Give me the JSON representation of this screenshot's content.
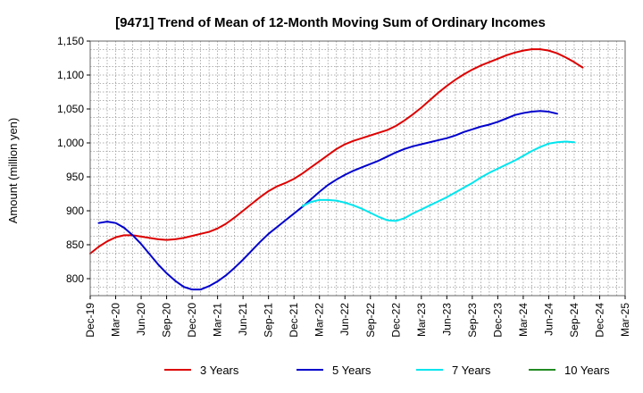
{
  "chart_data": {
    "type": "line",
    "title": "[9471]  Trend of Mean of 12-Month Moving Sum of Ordinary Incomes",
    "ylabel": "Amount (million yen)",
    "xlabel": "",
    "ylim": [
      775,
      1150
    ],
    "y_ticks": [
      800,
      850,
      900,
      950,
      1000,
      1050,
      1100,
      1150
    ],
    "y_tick_labels": [
      "800",
      "850",
      "900",
      "950",
      "1,000",
      "1,050",
      "1,100",
      "1,150"
    ],
    "x_tick_labels": [
      "Dec-19",
      "Mar-20",
      "Jun-20",
      "Sep-20",
      "Dec-20",
      "Mar-21",
      "Jun-21",
      "Sep-21",
      "Dec-21",
      "Mar-22",
      "Jun-22",
      "Sep-22",
      "Dec-22",
      "Mar-23",
      "Jun-23",
      "Sep-23",
      "Dec-23",
      "Mar-24",
      "Jun-24",
      "Sep-24",
      "Dec-24",
      "Mar-25"
    ],
    "grid": true,
    "legend_position": "bottom",
    "series": [
      {
        "name": "3 Years",
        "color": "#dd0000",
        "start_index": 0,
        "values": [
          837,
          847,
          855,
          861,
          864,
          864,
          862,
          860,
          858,
          857,
          858,
          860,
          863,
          866,
          869,
          874,
          881,
          890,
          900,
          910,
          920,
          929,
          936,
          941,
          947,
          955,
          964,
          973,
          982,
          991,
          998,
          1003,
          1007,
          1011,
          1015,
          1019,
          1025,
          1033,
          1042,
          1052,
          1063,
          1074,
          1084,
          1093,
          1101,
          1108,
          1114,
          1119,
          1124,
          1129,
          1133,
          1136,
          1138,
          1138,
          1136,
          1132,
          1126,
          1119,
          1111
        ]
      },
      {
        "name": "5 Years",
        "color": "#0000cc",
        "start_index": 1,
        "values": [
          882,
          884,
          882,
          875,
          864,
          851,
          836,
          821,
          808,
          797,
          788,
          784,
          784,
          789,
          796,
          805,
          816,
          828,
          841,
          854,
          866,
          876,
          886,
          896,
          906,
          917,
          928,
          938,
          946,
          953,
          959,
          964,
          969,
          974,
          980,
          986,
          991,
          995,
          998,
          1001,
          1004,
          1007,
          1011,
          1016,
          1020,
          1024,
          1027,
          1031,
          1036,
          1041,
          1044,
          1046,
          1047,
          1046,
          1043
        ]
      },
      {
        "name": "7 Years",
        "color": "#00e5ee",
        "start_index": 25,
        "values": [
          907,
          913,
          916,
          916,
          915,
          912,
          908,
          903,
          897,
          891,
          886,
          885,
          889,
          896,
          902,
          908,
          914,
          920,
          927,
          934,
          941,
          949,
          956,
          962,
          968,
          974,
          981,
          988,
          994,
          999,
          1001,
          1002,
          1001
        ]
      },
      {
        "name": "10 Years",
        "color": "#228b22",
        "start_index": 0,
        "values": []
      }
    ]
  }
}
